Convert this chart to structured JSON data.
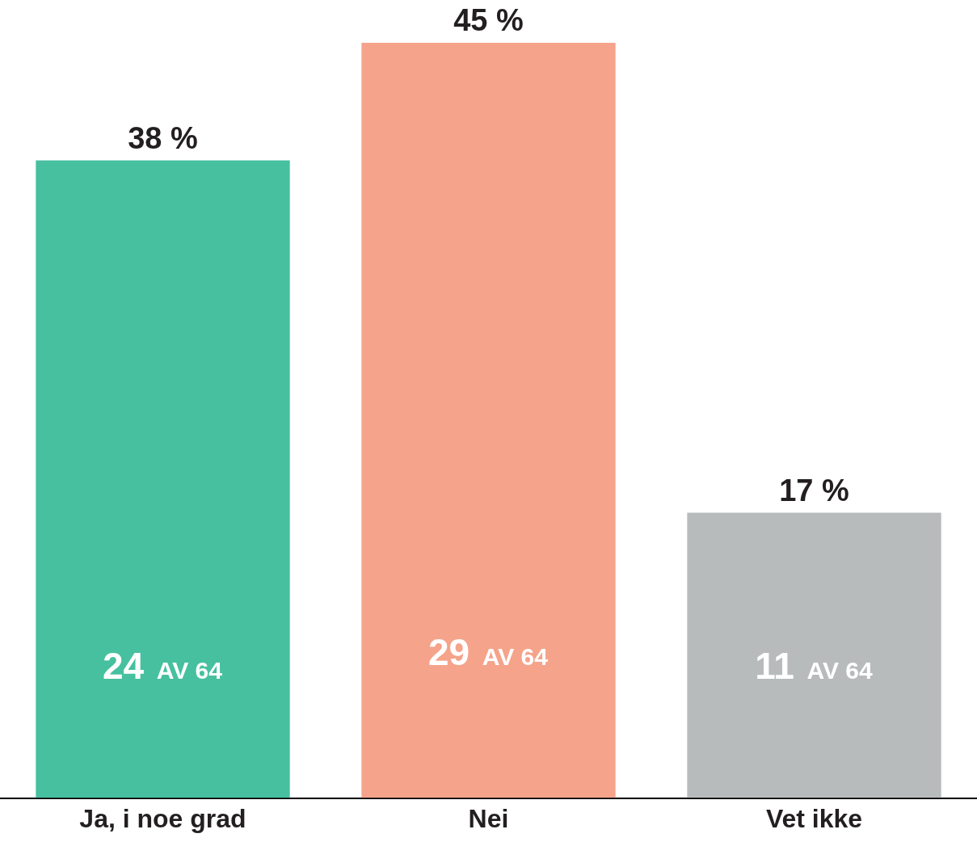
{
  "chart_data": {
    "type": "bar",
    "categories": [
      "Ja, i noe grad",
      "Nei",
      "Vet ikke"
    ],
    "values": [
      38,
      45,
      17
    ],
    "colors": [
      "#47c09f",
      "#f5a38a",
      "#b8bbbc"
    ],
    "value_labels": [
      "38 %",
      "45 %",
      "17 %"
    ],
    "annotations": [
      "24 AV 64",
      "29 AV 64",
      "11 AV 64"
    ],
    "grid": false,
    "legend": false
  }
}
